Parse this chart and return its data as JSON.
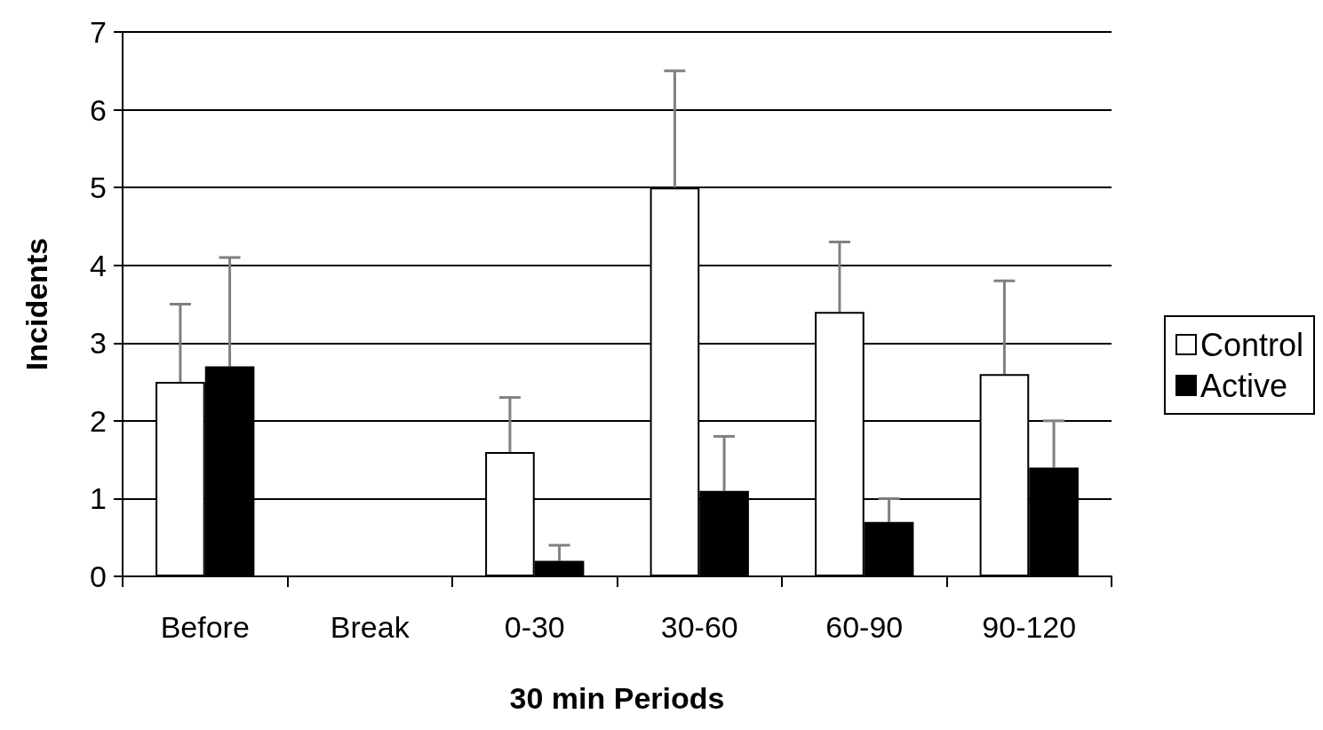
{
  "chart_data": {
    "type": "bar",
    "xlabel": "30 min Periods",
    "ylabel": "Incidents",
    "categories": [
      "Before",
      "Break",
      "0-30",
      "30-60",
      "60-90",
      "90-120"
    ],
    "series": [
      {
        "name": "Control",
        "color": "#ffffff",
        "values": [
          2.5,
          null,
          1.6,
          5.0,
          3.4,
          2.6
        ],
        "errors": [
          [
            2.5,
            3.5
          ],
          null,
          [
            1.6,
            2.3
          ],
          [
            5.0,
            6.5
          ],
          [
            3.4,
            4.3
          ],
          [
            2.6,
            3.8
          ]
        ]
      },
      {
        "name": "Active",
        "color": "#000000",
        "values": [
          2.7,
          null,
          0.2,
          1.1,
          0.7,
          1.4
        ],
        "errors": [
          [
            2.7,
            4.1
          ],
          null,
          [
            0.2,
            0.4
          ],
          [
            1.1,
            1.8
          ],
          [
            0.7,
            1.0
          ],
          [
            1.4,
            2.0
          ]
        ]
      }
    ],
    "ylim": [
      0,
      7
    ],
    "yticks": [
      0,
      1,
      2,
      3,
      4,
      5,
      6,
      7
    ],
    "grid": "y",
    "legend": "right"
  }
}
